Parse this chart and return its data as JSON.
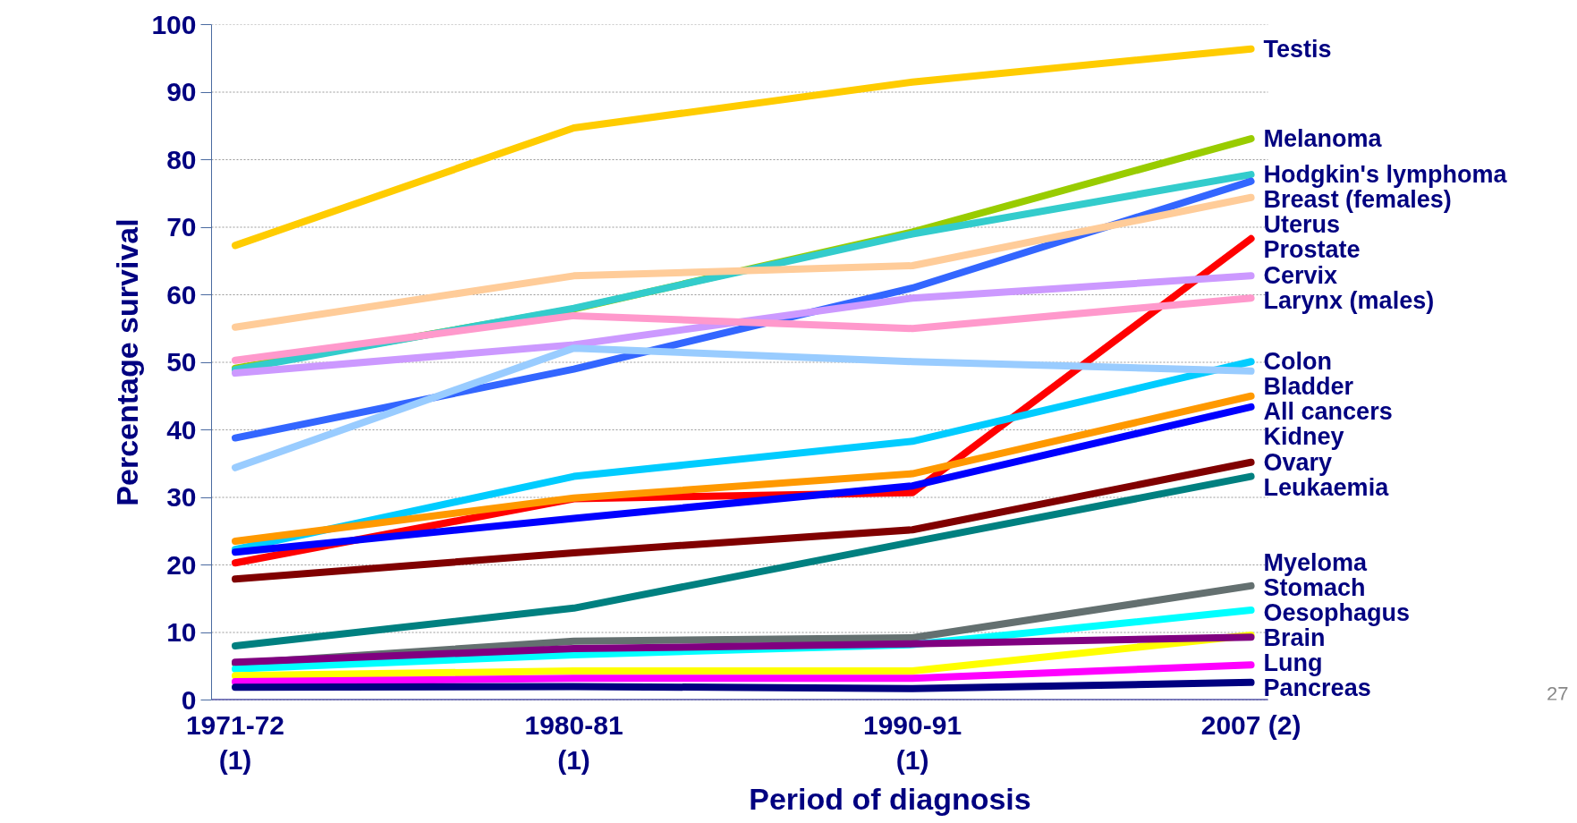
{
  "chart_data": {
    "type": "line",
    "xlabel": "Period of diagnosis",
    "ylabel": "Percentage survival",
    "categories": [
      "1971-72\n(1)",
      "1980-81\n(1)",
      "1990-91\n(1)",
      "2007 (2)"
    ],
    "ylim": [
      0,
      100
    ],
    "yticks": [
      0,
      10,
      20,
      30,
      40,
      50,
      60,
      70,
      80,
      90,
      100
    ],
    "grid": "y",
    "legend": false,
    "marker": "none",
    "line_style": "solid",
    "annotations": [
      "27"
    ],
    "series": [
      {
        "name": "Testis",
        "color": "#ffcc00",
        "values": [
          67.3,
          84.7,
          91.5,
          96.4
        ]
      },
      {
        "name": "Melanoma",
        "color": "#99cc00",
        "values": [
          49.1,
          57.9,
          69.3,
          83.1
        ]
      },
      {
        "name": "Hodgkin's lymphoma",
        "color": "#33cccc",
        "values": [
          48.9,
          58.0,
          69.0,
          77.8
        ]
      },
      {
        "name": "Breast (females)",
        "color": "#3366ff",
        "values": [
          38.8,
          49.0,
          61.0,
          76.8
        ]
      },
      {
        "name": "Uterus",
        "color": "#ffcc99",
        "values": [
          55.2,
          62.8,
          64.3,
          74.4
        ]
      },
      {
        "name": "Prostate",
        "color": "#ff0000",
        "values": [
          20.3,
          29.8,
          30.7,
          68.3
        ]
      },
      {
        "name": "Cervix",
        "color": "#cc99ff",
        "values": [
          48.4,
          52.6,
          59.5,
          62.8
        ]
      },
      {
        "name": "Larynx (males)",
        "color": "#ff99cc",
        "values": [
          50.3,
          56.9,
          55.0,
          59.5
        ]
      },
      {
        "name": "Colon",
        "color": "#00ccff",
        "values": [
          22.3,
          33.1,
          38.3,
          50.1
        ]
      },
      {
        "name": "Bladder",
        "color": "#99ccff",
        "values": [
          34.4,
          52.1,
          50.1,
          48.7
        ]
      },
      {
        "name": "All cancers",
        "color": "#ff9900",
        "values": [
          23.5,
          29.9,
          33.5,
          45.0
        ]
      },
      {
        "name": "Kidney",
        "color": "#0000ff",
        "values": [
          21.9,
          26.9,
          31.7,
          43.4
        ]
      },
      {
        "name": "Ovary",
        "color": "#800000",
        "values": [
          17.9,
          21.8,
          25.2,
          35.2
        ]
      },
      {
        "name": "Leukaemia",
        "color": "#008080",
        "values": [
          8.0,
          13.6,
          23.4,
          33.1
        ]
      },
      {
        "name": "Myeloma",
        "color": "#647070",
        "values": [
          5.4,
          8.7,
          9.2,
          16.9
        ]
      },
      {
        "name": "Stomach",
        "color": "#00ffff",
        "values": [
          4.6,
          6.7,
          8.2,
          13.3
        ]
      },
      {
        "name": "Oesophagus",
        "color": "#ffff00",
        "values": [
          3.6,
          4.3,
          4.3,
          9.6
        ]
      },
      {
        "name": "Brain",
        "color": "#800080",
        "values": [
          5.6,
          7.6,
          8.3,
          9.3
        ]
      },
      {
        "name": "Lung",
        "color": "#ff00ff",
        "values": [
          2.7,
          3.2,
          3.2,
          5.2
        ]
      },
      {
        "name": "Pancreas",
        "color": "#000080",
        "values": [
          1.9,
          2.0,
          1.7,
          2.6
        ]
      }
    ]
  }
}
